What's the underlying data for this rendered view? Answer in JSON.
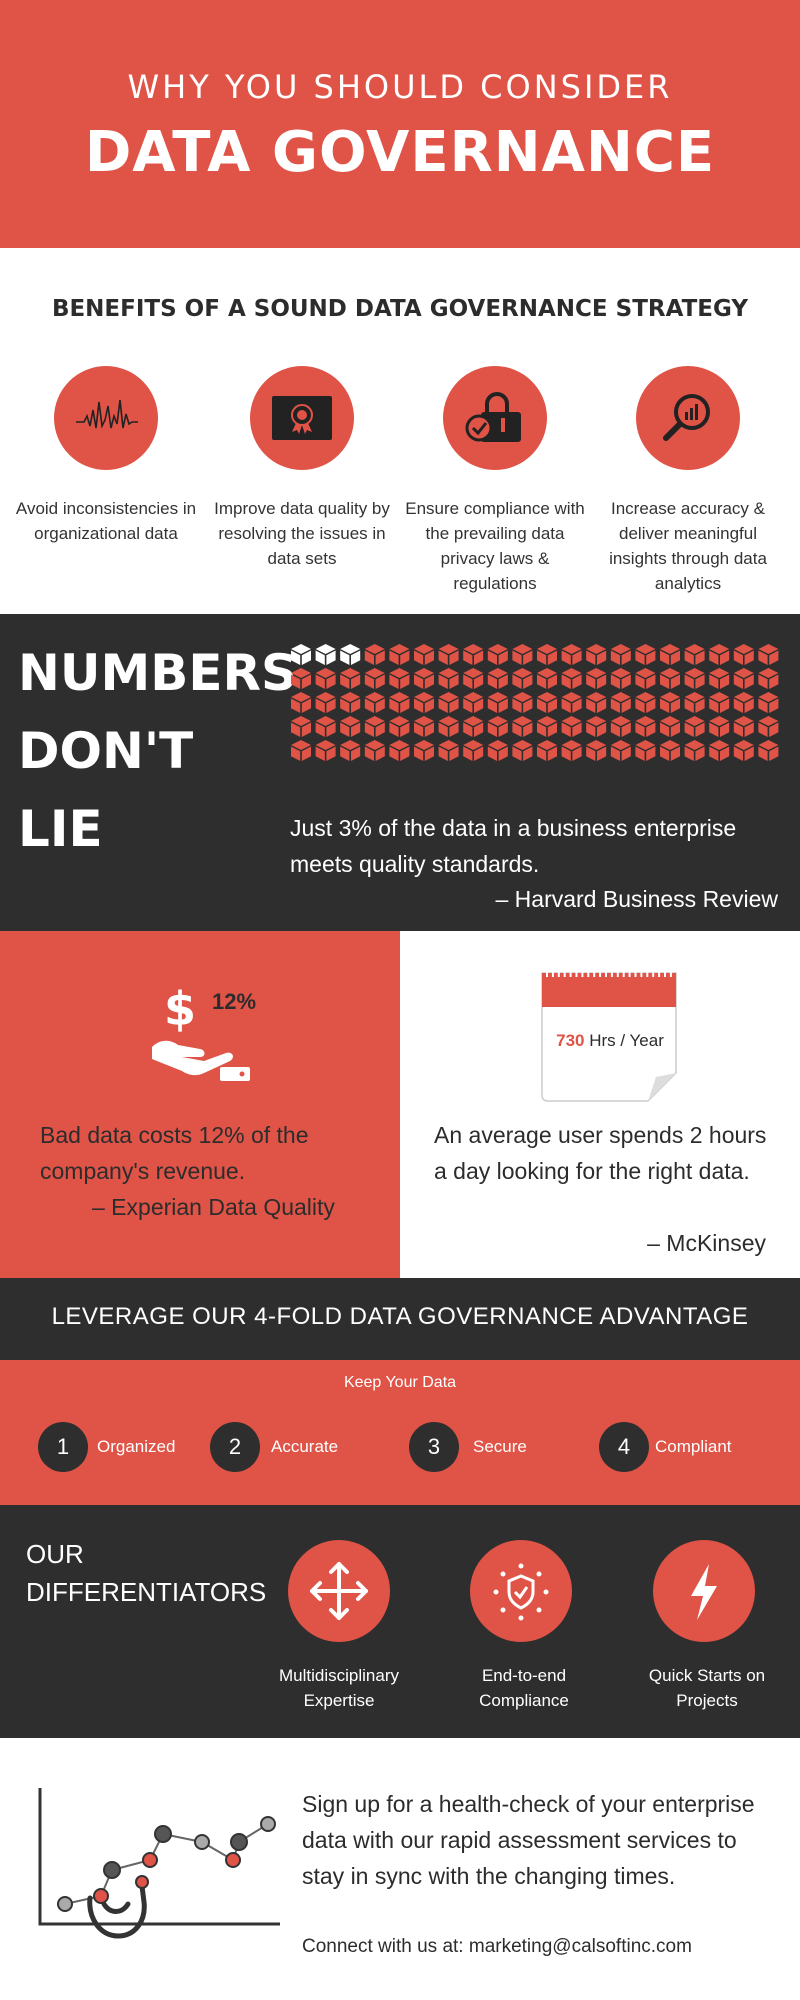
{
  "header": {
    "pre_title": "WHY YOU SHOULD CONSIDER",
    "title": "DATA GOVERNANCE"
  },
  "benefits": {
    "title": "BENEFITS OF A SOUND DATA GOVERNANCE STRATEGY",
    "items": [
      {
        "icon": "waveform-icon",
        "text": "Avoid inconsistencies in organizational data"
      },
      {
        "icon": "certificate-icon",
        "text": "Improve data quality by resolving the issues in data sets"
      },
      {
        "icon": "padlock-check-icon",
        "text": "Ensure compliance with the prevailing data privacy laws & regulations"
      },
      {
        "icon": "magnifier-chart-icon",
        "text": "Increase accuracy & deliver meaningful insights through data analytics"
      }
    ]
  },
  "numbers": {
    "heading_lines": [
      "NUMBERS",
      "DON'T",
      "LIE"
    ],
    "stat": "Just 3% of the data in a business enterprise meets quality standards.",
    "source": "– Harvard Business Review",
    "cube_grid": {
      "total": 100,
      "highlighted": 3,
      "highlight_color": "#ffffff",
      "base_color": "#e05347"
    }
  },
  "split": {
    "left": {
      "percent_label": "12%",
      "text": "Bad data costs 12% of the company's revenue.",
      "source": "– Experian Data Quality"
    },
    "right": {
      "calendar_value": "730",
      "calendar_unit": "Hrs / Year",
      "text": "An average user spends 2 hours a day looking for the right data.",
      "source": "– McKinsey"
    }
  },
  "leverage": {
    "title": "LEVERAGE OUR 4-FOLD DATA GOVERNANCE ADVANTAGE",
    "subtitle": "Keep Your Data",
    "items": [
      {
        "num": "1",
        "label": "Organized"
      },
      {
        "num": "2",
        "label": "Accurate"
      },
      {
        "num": "3",
        "label": "Secure"
      },
      {
        "num": "4",
        "label": "Compliant"
      }
    ]
  },
  "differentiators": {
    "title_line1": "OUR",
    "title_line2": "DIFFERENTIATORS",
    "items": [
      {
        "icon": "arrows-move-icon",
        "text": "Multidisciplinary Expertise"
      },
      {
        "icon": "shield-stars-icon",
        "text": "End-to-end Compliance"
      },
      {
        "icon": "lightning-icon",
        "text": "Quick Starts on Projects"
      }
    ]
  },
  "signup": {
    "text": "Sign up for a health-check of your enterprise data with our rapid assessment services to stay in sync with the changing times.",
    "contact": "Connect with us at: marketing@calsoftinc.com"
  },
  "colors": {
    "accent": "#e05347",
    "dark": "#2e2e2e",
    "text": "#2c2c2c"
  }
}
